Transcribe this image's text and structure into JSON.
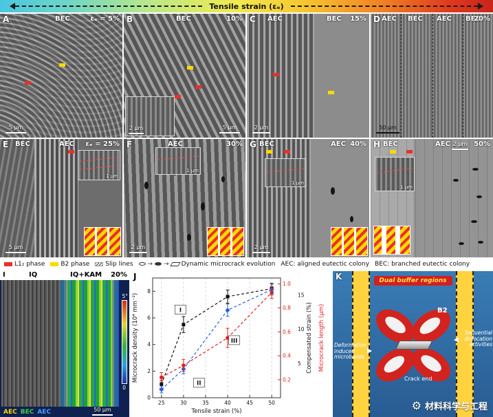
{
  "strip": {
    "label": "Tensile strain (εₑ)"
  },
  "panels": {
    "a": {
      "letter": "A",
      "tag1": "BEC",
      "strain": "εₑ = 5%",
      "scale1": "5 μm"
    },
    "b": {
      "letter": "B",
      "tag1": "BEC",
      "strain": "10%",
      "scale1": "2 μm",
      "scale2": "5 μm"
    },
    "c": {
      "letter": "C",
      "tag1": "AEC",
      "tag2": "BEC",
      "strain": "15%",
      "scale1": "2 μm"
    },
    "d": {
      "letter": "D",
      "tag1": "AEC",
      "tag2": "BEC",
      "tag3": "AEC",
      "tag4": "BEC",
      "strain": "20%",
      "scale1": "50 μm"
    },
    "e": {
      "letter": "E",
      "tag1": "BEC",
      "tag2": "AEC",
      "strain": "εₑ = 25%",
      "scale1": "5 μm",
      "inset_scale": "1 μm"
    },
    "f": {
      "letter": "F",
      "tag1": "AEC",
      "strain": "30%",
      "scale1": "2 μm",
      "inset_scale": "1 μm"
    },
    "g": {
      "letter": "G",
      "tag1": "BEC",
      "tag2": "AEC",
      "strain": "40%",
      "scale1": "2 μm",
      "inset_scale": "1 μm"
    },
    "h": {
      "letter": "H",
      "tag1": "BEC",
      "tag2": "AEC",
      "strain": "50%",
      "scale1": "2 μm",
      "inset_scale": "1 μm"
    }
  },
  "legend": {
    "l12": "L1₂ phase",
    "b2": "B2 phase",
    "slip": "Slip lines",
    "microcrack": "Dynamic microcrack evolution",
    "aec": "AEC: aligned eutectic colony",
    "bec": "BEC: branched eutectic colony"
  },
  "panel_i": {
    "letter": "I",
    "iq": "IQ",
    "iqkam": "IQ+KAM",
    "strain": "20%",
    "tag_aec1": "AEC",
    "tag_bec": "BEC",
    "tag_aec2": "AEC",
    "cb_max": "5°",
    "cb_min": "0",
    "scale": "50 μm"
  },
  "panel_j": {
    "letter": "J"
  },
  "chart_data": {
    "type": "line",
    "title": "",
    "xlabel": "Tensile strain (%)",
    "x_ticks": [
      25,
      30,
      35,
      40,
      45,
      50
    ],
    "xlim": [
      23,
      52
    ],
    "grid": "vertical-dashed",
    "legend": "none",
    "axes": {
      "left": {
        "label": "Microcrack density (10⁴ mm⁻²)",
        "ticks": [
          0,
          2,
          4,
          6,
          8
        ],
        "lim": [
          0,
          9
        ],
        "color": "#111111"
      },
      "right1": {
        "label": "Microcrack length (μm)",
        "ticks": [
          0.2,
          0.4,
          0.6,
          0.8,
          1.0
        ],
        "lim": [
          0.05,
          1.05
        ],
        "color": "#e02020"
      },
      "right2": {
        "label": "Compensated strain (%)",
        "ticks": [
          5,
          10,
          15
        ],
        "lim": [
          0,
          17.5
        ],
        "color": "#111111"
      }
    },
    "series": [
      {
        "name": "Microcrack density",
        "axis": "left",
        "color": "#111111",
        "marker": "square",
        "x": [
          25,
          30,
          40,
          50
        ],
        "y": [
          1.0,
          5.5,
          7.6,
          8.2
        ],
        "err": [
          0.3,
          0.6,
          0.5,
          0.4
        ]
      },
      {
        "name": "Compensated strain",
        "axis": "right2",
        "color": "#2b5fd9",
        "marker": "diamond",
        "x": [
          25,
          30,
          40,
          50
        ],
        "y": [
          1.2,
          4.2,
          12.8,
          15.8
        ],
        "err": [
          0.5,
          0.7,
          0.9,
          0.8
        ]
      },
      {
        "name": "Microcrack length",
        "axis": "right1",
        "color": "#e02020",
        "marker": "circle",
        "x": [
          25,
          30,
          40,
          50
        ],
        "y": [
          0.22,
          0.32,
          0.55,
          0.93
        ],
        "err": [
          0.04,
          0.05,
          0.08,
          0.05
        ]
      }
    ],
    "annotations": [
      {
        "text": "I",
        "x": 29.3,
        "y": 6.6
      },
      {
        "text": "II",
        "x": 33.5,
        "y": 1.1
      },
      {
        "text": "III",
        "x": 41.5,
        "y": 4.3
      }
    ]
  },
  "panel_k": {
    "letter": "K",
    "title": "Dual buffer regions",
    "b2": "B2",
    "left_note": "Deformation induced microbands",
    "right_note": "Sequential dislocation activities",
    "crack": "Crack end"
  },
  "watermark": {
    "text": "材料科学与工程"
  },
  "icons": {
    "gear": "⚙",
    "arrow": "→"
  },
  "colors": {
    "l12_red": "#e8312a",
    "b2_yellow": "#ffd900",
    "panel_k_blue": "#3a7cb5",
    "strip_left": "#49c6e0",
    "strip_right": "#c8241a"
  }
}
